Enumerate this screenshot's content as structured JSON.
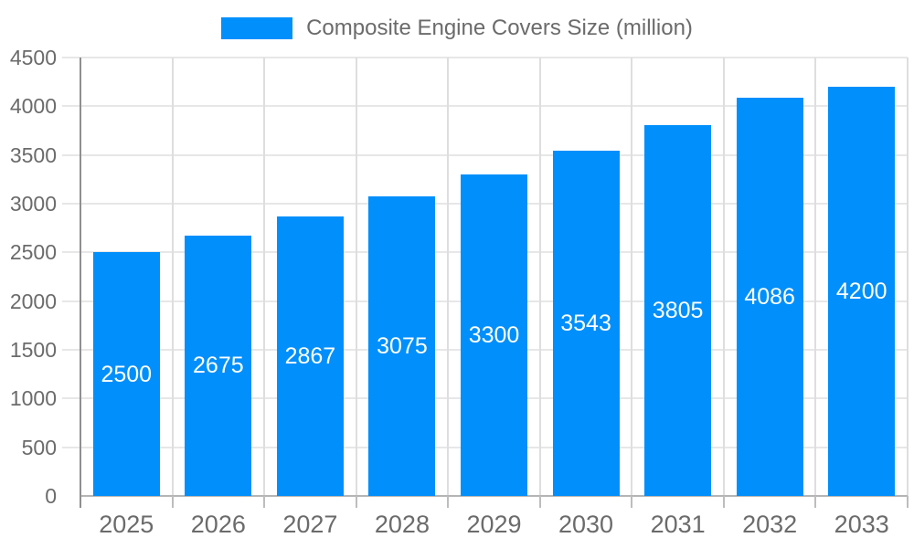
{
  "legend": {
    "label": "Composite Engine Covers Size (million)"
  },
  "chart_data": {
    "type": "bar",
    "title": "",
    "xlabel": "",
    "ylabel": "",
    "categories": [
      "2025",
      "2026",
      "2027",
      "2028",
      "2029",
      "2030",
      "2031",
      "2032",
      "2033"
    ],
    "series": [
      {
        "name": "Composite Engine Covers Size (million)",
        "values": [
          2500,
          2675,
          2867,
          3075,
          3300,
          3543,
          3805,
          4086,
          4200
        ]
      }
    ],
    "data_labels": [
      "2500",
      "2675",
      "2867",
      "3075",
      "3300",
      "3543",
      "3805",
      "4086",
      "4200"
    ],
    "ylim": [
      0,
      4500
    ],
    "ytick_step": 500,
    "ytick_labels": [
      "0",
      "500",
      "1000",
      "1500",
      "2000",
      "2500",
      "3000",
      "3500",
      "4000",
      "4500"
    ],
    "grid": true,
    "legend_position": "top",
    "colors": {
      "bar": "#008FFB",
      "data_label": "#FFFFFF",
      "axis_label": "#6B6B6B",
      "legend_label": "#6B6B6B",
      "grid_horizontal": "#E7E7E7",
      "grid_vertical": "#DEDEDE",
      "y_axis_line": "#8F8F8F",
      "x_axis_line": "#B5B5B5",
      "x_tick": "#BDBDBD"
    }
  }
}
